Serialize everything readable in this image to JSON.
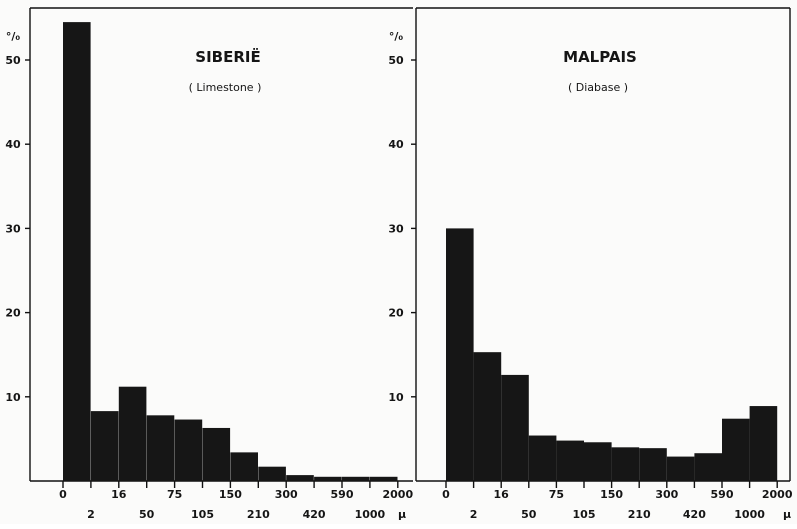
{
  "chart_data": [
    {
      "type": "bar",
      "title": "SIBERIË",
      "subtitle": "( Limestone )",
      "ylabel": "°/₀",
      "ylim": [
        0,
        55
      ],
      "yticks": [
        10,
        20,
        30,
        40,
        50
      ],
      "x_unit": "μ",
      "boundaries_upper": [
        "0",
        "16",
        "75",
        "150",
        "300",
        "590",
        "2000"
      ],
      "boundaries_lower": [
        "2",
        "50",
        "105",
        "210",
        "420",
        "1000"
      ],
      "bins": [
        "0-2",
        "2-16",
        "16-50",
        "50-75",
        "75-105",
        "105-150",
        "150-210",
        "210-300",
        "300-420",
        "420-590",
        "590-1000",
        "1000-2000"
      ],
      "values": [
        54.5,
        8.3,
        11.2,
        7.8,
        7.3,
        6.3,
        3.4,
        1.7,
        0.7,
        0.5,
        0.5,
        0.5
      ]
    },
    {
      "type": "bar",
      "title": "MALPAIS",
      "subtitle": "( Diabase )",
      "ylabel": "°/₀",
      "ylim": [
        0,
        55
      ],
      "yticks": [
        10,
        20,
        30,
        40,
        50
      ],
      "x_unit": "μ",
      "boundaries_upper": [
        "0",
        "16",
        "75",
        "150",
        "300",
        "590",
        "2000"
      ],
      "boundaries_lower": [
        "2",
        "50",
        "105",
        "210",
        "420",
        "1000"
      ],
      "bins": [
        "0-2",
        "2-16",
        "16-50",
        "50-75",
        "75-105",
        "105-150",
        "150-210",
        "210-300",
        "300-420",
        "420-590",
        "590-1000",
        "1000-2000"
      ],
      "values": [
        30.0,
        15.3,
        12.6,
        5.4,
        4.8,
        4.6,
        4.0,
        3.9,
        2.9,
        3.3,
        7.4,
        8.9
      ]
    }
  ]
}
